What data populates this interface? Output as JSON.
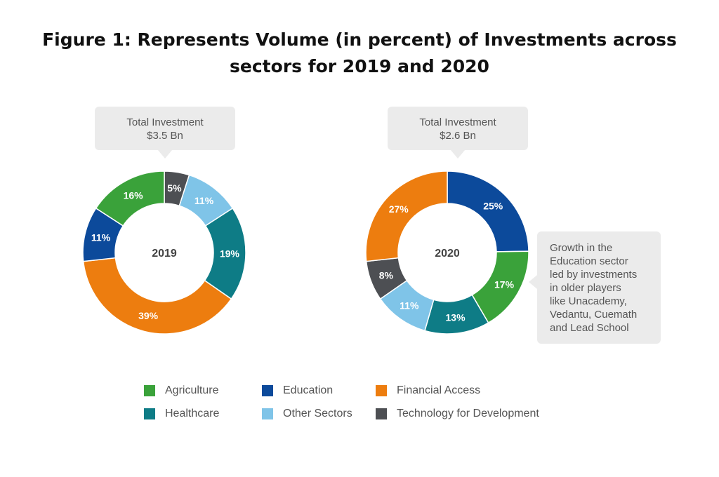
{
  "title_lines": [
    "Figure 1: Represents Volume (in percent) of Investments across",
    "sectors for 2019 and 2020"
  ],
  "callouts": {
    "c2019": [
      "Total Investment",
      "$3.5 Bn"
    ],
    "c2020": [
      "Total Investment",
      "$2.6 Bn"
    ],
    "side": [
      "Growth in the",
      "Education sector",
      "led by investments",
      "in older players",
      "like Unacademy,",
      "Vedantu, Cuemath",
      "and Lead School"
    ]
  },
  "chart_data": [
    {
      "type": "pie",
      "center_label": "2019",
      "slices": [
        {
          "label": "Technology for Development",
          "value": 5,
          "text": "5%",
          "color": "#4d4f53"
        },
        {
          "label": "Other Sectors",
          "value": 11,
          "text": "11%",
          "color": "#7fc4e8"
        },
        {
          "label": "Healthcare",
          "value": 19,
          "text": "19%",
          "color": "#0e7c86"
        },
        {
          "label": "Financial Access",
          "value": 39,
          "text": "39%",
          "color": "#ed7d0f"
        },
        {
          "label": "Education",
          "value": 11,
          "text": "11%",
          "color": "#0c4a9b"
        },
        {
          "label": "Agriculture",
          "value": 16,
          "text": "16%",
          "color": "#3aa23a"
        }
      ]
    },
    {
      "type": "pie",
      "center_label": "2020",
      "slices": [
        {
          "label": "Education",
          "value": 25,
          "text": "25%",
          "color": "#0c4a9b"
        },
        {
          "label": "Agriculture",
          "value": 17,
          "text": "17%",
          "color": "#3aa23a"
        },
        {
          "label": "Healthcare",
          "value": 13,
          "text": "13%",
          "color": "#0e7c86"
        },
        {
          "label": "Other Sectors",
          "value": 11,
          "text": "11%",
          "color": "#7fc4e8"
        },
        {
          "label": "Technology for Development",
          "value": 8,
          "text": "8%",
          "color": "#4d4f53"
        },
        {
          "label": "Financial Access",
          "value": 27,
          "text": "27%",
          "color": "#ed7d0f"
        }
      ]
    }
  ],
  "legend": [
    {
      "label": "Agriculture",
      "color": "#3aa23a"
    },
    {
      "label": "Education",
      "color": "#0c4a9b"
    },
    {
      "label": "Financial Access",
      "color": "#ed7d0f"
    },
    {
      "label": "Healthcare",
      "color": "#0e7c86"
    },
    {
      "label": "Other Sectors",
      "color": "#7fc4e8"
    },
    {
      "label": "Technology for Development",
      "color": "#4d4f53"
    }
  ]
}
